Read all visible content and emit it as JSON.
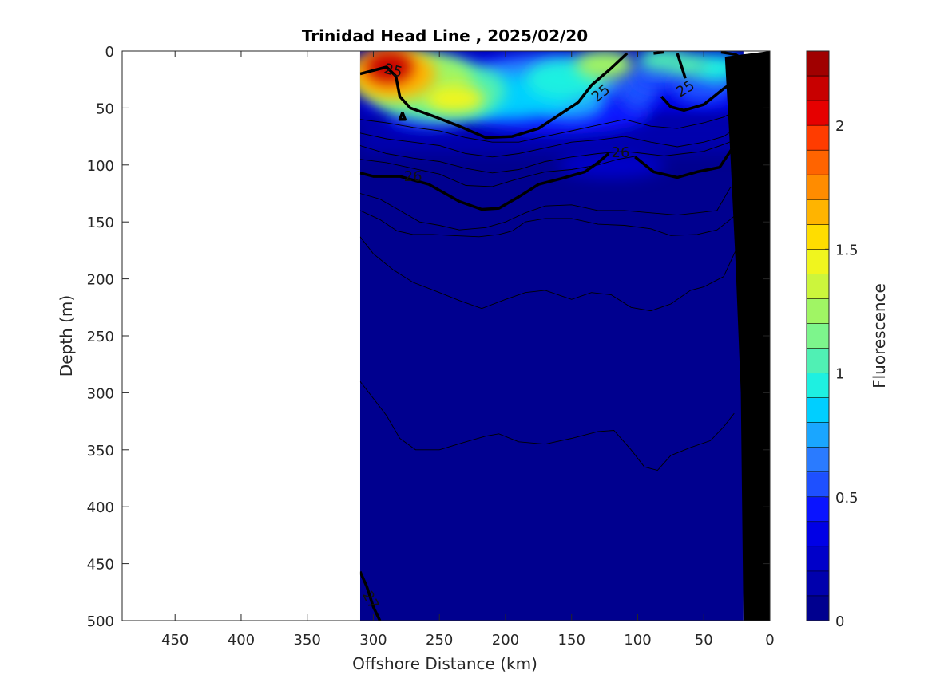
{
  "chart_data": {
    "type": "heatmap",
    "title": "Trinidad Head Line , 2025/02/20",
    "xlabel": "Offshore Distance (km)",
    "ylabel": "Depth (m)",
    "colorbar_label": "Fluorescence",
    "xlim": [
      490,
      0
    ],
    "ylim": [
      0,
      500
    ],
    "x_reversed": true,
    "y_reversed": true,
    "x_ticks": [
      450,
      400,
      350,
      300,
      250,
      200,
      150,
      100,
      50,
      0
    ],
    "y_ticks": [
      0,
      50,
      100,
      150,
      200,
      250,
      300,
      350,
      400,
      450,
      500
    ],
    "colorbar": {
      "range": [
        0,
        2.3
      ],
      "ticks": [
        0,
        0.5,
        1,
        1.5,
        2
      ],
      "tick_labels": [
        "0",
        "0.5",
        "1",
        "1.5",
        "2"
      ],
      "colors": [
        "#00008f",
        "#0000ad",
        "#0000c9",
        "#0000e6",
        "#0a14ff",
        "#1e50ff",
        "#2a7bff",
        "#1aa6ff",
        "#00cfff",
        "#1ef0e1",
        "#50f0b4",
        "#7df58c",
        "#a0f564",
        "#ccf53c",
        "#f0f51e",
        "#ffdd00",
        "#ffb400",
        "#ff8c00",
        "#ff6400",
        "#ff3c00",
        "#e60000",
        "#c80000",
        "#a00000"
      ]
    },
    "data_extent": {
      "x_min": 20,
      "x_max": 310,
      "depth_max": 500
    },
    "bottom_topography": [
      [
        20,
        500
      ],
      [
        22,
        300
      ],
      [
        26,
        185
      ],
      [
        30,
        88
      ],
      [
        34,
        5
      ]
    ],
    "density_contours": [
      {
        "level": 25,
        "label": "25",
        "points": [
          [
            310,
            20
          ],
          [
            290,
            14
          ],
          [
            283,
            22
          ],
          [
            280,
            40
          ],
          [
            272,
            50
          ],
          [
            255,
            57
          ],
          [
            235,
            66
          ],
          [
            215,
            76
          ],
          [
            195,
            75
          ],
          [
            175,
            68
          ],
          [
            158,
            55
          ],
          [
            145,
            45
          ],
          [
            135,
            30
          ],
          [
            120,
            15
          ],
          [
            108,
            2
          ]
        ]
      },
      {
        "level": 25,
        "label": "25",
        "points": [
          [
            88,
            2
          ],
          [
            80,
            1
          ]
        ]
      },
      {
        "level": 25,
        "label": "25",
        "points": [
          [
            70,
            2
          ],
          [
            65,
            20
          ],
          [
            64,
            24
          ]
        ]
      },
      {
        "level": 25,
        "label": "25",
        "points": [
          [
            82,
            40
          ],
          [
            75,
            49
          ],
          [
            65,
            52
          ],
          [
            50,
            47
          ],
          [
            35,
            33
          ],
          [
            22,
            23
          ]
        ]
      },
      {
        "level": 25,
        "label": "",
        "points": [
          [
            37,
            1
          ],
          [
            26,
            3
          ],
          [
            22,
            6
          ]
        ]
      },
      {
        "level": 25,
        "label": "",
        "points": [
          [
            278,
            54
          ],
          [
            280,
            60
          ],
          [
            276,
            60
          ],
          [
            278,
            54
          ]
        ]
      },
      {
        "level": 26,
        "label": "26",
        "points": [
          [
            310,
            107
          ],
          [
            300,
            110
          ],
          [
            280,
            110
          ],
          [
            258,
            117
          ],
          [
            235,
            132
          ],
          [
            218,
            139
          ],
          [
            205,
            138
          ],
          [
            190,
            128
          ],
          [
            175,
            117
          ],
          [
            158,
            112
          ],
          [
            140,
            106
          ],
          [
            130,
            98
          ],
          [
            122,
            90
          ]
        ]
      },
      {
        "level": 26,
        "label": "",
        "points": [
          [
            102,
            93
          ],
          [
            88,
            106
          ],
          [
            70,
            111
          ],
          [
            55,
            106
          ],
          [
            38,
            102
          ],
          [
            22,
            74
          ]
        ]
      },
      {
        "level": 27,
        "label": "27",
        "points": [
          [
            310,
            457
          ],
          [
            305,
            470
          ],
          [
            300,
            488
          ],
          [
            295,
            500
          ]
        ]
      }
    ],
    "thin_contours": [
      [
        [
          310,
          60
        ],
        [
          290,
          63
        ],
        [
          270,
          67
        ],
        [
          250,
          70
        ],
        [
          230,
          76
        ],
        [
          210,
          80
        ],
        [
          190,
          80
        ],
        [
          170,
          75
        ],
        [
          150,
          70
        ],
        [
          130,
          65
        ],
        [
          110,
          60
        ],
        [
          90,
          66
        ],
        [
          70,
          68
        ],
        [
          50,
          63
        ],
        [
          35,
          58
        ],
        [
          22,
          50
        ]
      ],
      [
        [
          310,
          72
        ],
        [
          290,
          77
        ],
        [
          270,
          80
        ],
        [
          250,
          83
        ],
        [
          230,
          90
        ],
        [
          210,
          93
        ],
        [
          190,
          90
        ],
        [
          170,
          85
        ],
        [
          150,
          80
        ],
        [
          130,
          78
        ],
        [
          110,
          75
        ],
        [
          90,
          80
        ],
        [
          70,
          84
        ],
        [
          50,
          80
        ],
        [
          35,
          75
        ],
        [
          22,
          65
        ]
      ],
      [
        [
          310,
          83
        ],
        [
          290,
          90
        ],
        [
          270,
          94
        ],
        [
          250,
          97
        ],
        [
          230,
          103
        ],
        [
          210,
          107
        ],
        [
          190,
          104
        ],
        [
          170,
          97
        ],
        [
          150,
          93
        ],
        [
          130,
          90
        ],
        [
          110,
          88
        ],
        [
          95,
          90
        ],
        [
          80,
          92
        ],
        [
          65,
          90
        ],
        [
          50,
          88
        ],
        [
          35,
          82
        ],
        [
          22,
          76
        ]
      ],
      [
        [
          310,
          95
        ],
        [
          290,
          98
        ],
        [
          270,
          103
        ],
        [
          250,
          108
        ],
        [
          230,
          118
        ],
        [
          210,
          119
        ],
        [
          190,
          112
        ],
        [
          170,
          106
        ],
        [
          150,
          104
        ],
        [
          130,
          100
        ],
        [
          115,
          95
        ],
        [
          100,
          92
        ]
      ],
      [
        [
          310,
          125
        ],
        [
          295,
          130
        ],
        [
          280,
          140
        ],
        [
          265,
          150
        ],
        [
          250,
          153
        ],
        [
          235,
          157
        ],
        [
          215,
          155
        ],
        [
          200,
          150
        ],
        [
          185,
          142
        ],
        [
          170,
          136
        ],
        [
          150,
          135
        ],
        [
          130,
          140
        ],
        [
          110,
          140
        ],
        [
          90,
          142
        ],
        [
          70,
          144
        ],
        [
          55,
          142
        ],
        [
          40,
          140
        ],
        [
          30,
          120
        ],
        [
          22,
          115
        ]
      ],
      [
        [
          310,
          140
        ],
        [
          295,
          148
        ],
        [
          282,
          158
        ],
        [
          270,
          161
        ],
        [
          255,
          161
        ],
        [
          240,
          162
        ],
        [
          220,
          163
        ],
        [
          205,
          161
        ],
        [
          195,
          158
        ],
        [
          185,
          150
        ],
        [
          170,
          147
        ],
        [
          150,
          147
        ],
        [
          130,
          152
        ],
        [
          110,
          153
        ],
        [
          90,
          156
        ],
        [
          75,
          162
        ],
        [
          55,
          161
        ],
        [
          40,
          157
        ],
        [
          30,
          148
        ],
        [
          22,
          140
        ]
      ],
      [
        [
          310,
          163
        ],
        [
          300,
          178
        ],
        [
          285,
          192
        ],
        [
          270,
          203
        ],
        [
          250,
          212
        ],
        [
          235,
          219
        ],
        [
          218,
          226
        ],
        [
          200,
          218
        ],
        [
          185,
          212
        ],
        [
          170,
          210
        ],
        [
          150,
          218
        ],
        [
          135,
          212
        ],
        [
          120,
          214
        ],
        [
          105,
          225
        ],
        [
          90,
          228
        ],
        [
          75,
          222
        ],
        [
          60,
          210
        ],
        [
          50,
          207
        ],
        [
          35,
          198
        ],
        [
          25,
          173
        ]
      ],
      [
        [
          310,
          290
        ],
        [
          300,
          305
        ],
        [
          290,
          320
        ],
        [
          280,
          340
        ],
        [
          268,
          350
        ],
        [
          250,
          350
        ],
        [
          230,
          343
        ],
        [
          215,
          338
        ],
        [
          205,
          336
        ],
        [
          190,
          343
        ],
        [
          170,
          345
        ],
        [
          150,
          340
        ],
        [
          130,
          334
        ],
        [
          118,
          333
        ],
        [
          105,
          350
        ],
        [
          95,
          365
        ],
        [
          85,
          368
        ],
        [
          75,
          355
        ],
        [
          60,
          348
        ],
        [
          45,
          342
        ],
        [
          35,
          330
        ],
        [
          27,
          318
        ]
      ]
    ],
    "contour_labels": [
      {
        "text": "25",
        "x": 285,
        "y": 17,
        "angle": 14
      },
      {
        "text": "25",
        "x": 128,
        "y": 37,
        "angle": -38
      },
      {
        "text": "25",
        "x": 64,
        "y": 33,
        "angle": -32
      },
      {
        "text": "26",
        "x": 270,
        "y": 110,
        "angle": 0
      },
      {
        "text": "26",
        "x": 113,
        "y": 89,
        "angle": 0
      },
      {
        "text": "27",
        "x": 302,
        "y": 482,
        "angle": 62
      }
    ],
    "hotspots": [
      {
        "x": 288,
        "y": 14,
        "rx": 18,
        "ry": 14,
        "value": 2.15
      },
      {
        "x": 285,
        "y": 20,
        "rx": 32,
        "ry": 22,
        "value": 1.65
      },
      {
        "x": 270,
        "y": 25,
        "rx": 45,
        "ry": 24,
        "value": 1.25
      },
      {
        "x": 238,
        "y": 42,
        "rx": 22,
        "ry": 12,
        "value": 1.45
      },
      {
        "x": 250,
        "y": 35,
        "rx": 50,
        "ry": 28,
        "value": 1.0
      },
      {
        "x": 175,
        "y": 20,
        "rx": 45,
        "ry": 16,
        "value": 0.6
      },
      {
        "x": 200,
        "y": 40,
        "rx": 50,
        "ry": 20,
        "value": 0.8
      },
      {
        "x": 155,
        "y": 25,
        "rx": 30,
        "ry": 18,
        "value": 0.9
      },
      {
        "x": 150,
        "y": 45,
        "rx": 25,
        "ry": 15,
        "value": 0.75
      },
      {
        "x": 125,
        "y": 12,
        "rx": 22,
        "ry": 13,
        "value": 1.25
      },
      {
        "x": 130,
        "y": 30,
        "rx": 20,
        "ry": 12,
        "value": 0.6
      },
      {
        "x": 100,
        "y": 35,
        "rx": 15,
        "ry": 18,
        "value": 0.5
      },
      {
        "x": 82,
        "y": 8,
        "rx": 18,
        "ry": 10,
        "value": 1.05
      },
      {
        "x": 62,
        "y": 12,
        "rx": 15,
        "ry": 10,
        "value": 1.05
      },
      {
        "x": 85,
        "y": 22,
        "rx": 20,
        "ry": 12,
        "value": 0.5
      },
      {
        "x": 40,
        "y": 15,
        "rx": 18,
        "ry": 12,
        "value": 0.9
      },
      {
        "x": 50,
        "y": 30,
        "rx": 25,
        "ry": 16,
        "value": 0.5
      },
      {
        "x": 160,
        "y": 55,
        "rx": 70,
        "ry": 18,
        "value": 0.4
      },
      {
        "x": 120,
        "y": 100,
        "rx": 40,
        "ry": 12,
        "value": 0.25
      },
      {
        "x": 260,
        "y": 60,
        "rx": 30,
        "ry": 10,
        "value": 0.45
      }
    ]
  }
}
